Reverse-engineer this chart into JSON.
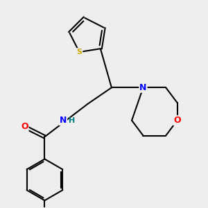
{
  "background_color": "#eeeeee",
  "bond_color": "#000000",
  "atom_colors": {
    "S": "#ccaa00",
    "N": "#0000ff",
    "O": "#ff0000",
    "C": "#000000",
    "H": "#008080"
  },
  "figsize": [
    3.0,
    3.0
  ],
  "dpi": 100
}
